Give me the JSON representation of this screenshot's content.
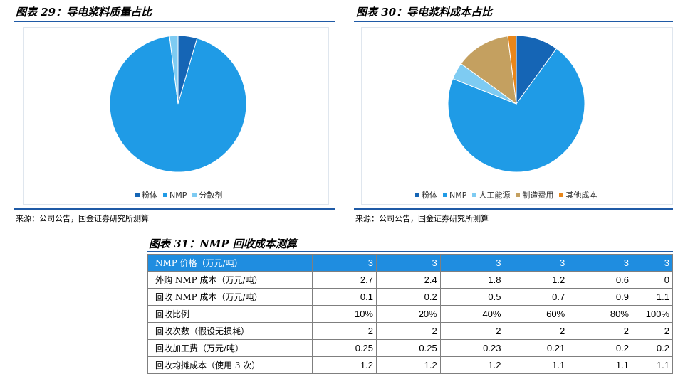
{
  "fig29": {
    "title": "图表 29：导电浆料质量占比",
    "source": "来源：公司公告，国金证券研究所测算",
    "chart_data": {
      "type": "pie",
      "title": "",
      "categories": [
        "粉体",
        "NMP",
        "分散剂"
      ],
      "values": [
        4.5,
        93.5,
        2.0
      ],
      "colors": [
        "#1565b5",
        "#1f9be6",
        "#7ecbf2"
      ],
      "legend_position": "bottom"
    }
  },
  "fig30": {
    "title": "图表 30：导电浆料成本占比",
    "source": "来源：公司公告，国金证券研究所测算",
    "chart_data": {
      "type": "pie",
      "title": "",
      "categories": [
        "粉体",
        "NMP",
        "人工能源",
        "制造费用",
        "其他成本"
      ],
      "values": [
        10,
        71,
        4,
        13,
        2
      ],
      "colors": [
        "#1565b5",
        "#1f9be6",
        "#7ecbf2",
        "#c4a060",
        "#e8861a"
      ],
      "legend_position": "bottom"
    }
  },
  "fig31": {
    "title": "图表 31：NMP 回收成本测算",
    "rows": [
      {
        "label": "NMP 价格（万元/吨）",
        "values": [
          "3",
          "3",
          "3",
          "3",
          "3",
          "3"
        ]
      },
      {
        "label": "外购 NMP 成本（万元/吨）",
        "values": [
          "2.7",
          "2.4",
          "1.8",
          "1.2",
          "0.6",
          "0"
        ]
      },
      {
        "label": "回收 NMP 成本（万元/吨）",
        "values": [
          "0.1",
          "0.2",
          "0.5",
          "0.7",
          "0.9",
          "1.1"
        ]
      },
      {
        "label": "回收比例",
        "values": [
          "10%",
          "20%",
          "40%",
          "60%",
          "80%",
          "100%"
        ]
      },
      {
        "label": "回收次数（假设无损耗）",
        "values": [
          "2",
          "2",
          "2",
          "2",
          "2",
          "2"
        ]
      },
      {
        "label": "回收加工费（万元/吨）",
        "values": [
          "0.25",
          "0.25",
          "0.23",
          "0.21",
          "0.2",
          "0.2"
        ]
      },
      {
        "label": "回收均摊成本（使用 3 次）",
        "values": [
          "1.2",
          "1.2",
          "1.2",
          "1.1",
          "1.1",
          "1.1"
        ]
      }
    ]
  }
}
